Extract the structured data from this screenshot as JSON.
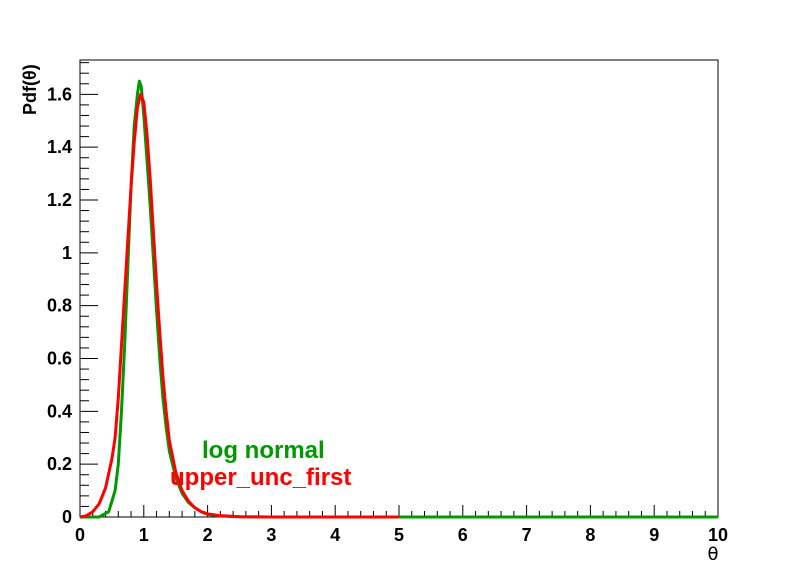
{
  "chart_data": {
    "type": "line",
    "title": "",
    "xlabel": "θ",
    "ylabel": "Pdf(θ)",
    "xlim": [
      0,
      10
    ],
    "ylim": [
      0,
      1.73
    ],
    "grid": false,
    "x_ticks": [
      "0",
      "1",
      "2",
      "3",
      "4",
      "5",
      "6",
      "7",
      "8",
      "9",
      "10"
    ],
    "y_ticks": [
      "0",
      "0.2",
      "0.4",
      "0.6",
      "0.8",
      "1",
      "1.2",
      "1.4",
      "1.6"
    ],
    "series": [
      {
        "name": "log normal",
        "color": "#009900",
        "x": [
          0.0,
          0.3,
          0.45,
          0.55,
          0.6,
          0.65,
          0.7,
          0.75,
          0.8,
          0.85,
          0.9,
          0.93,
          0.96,
          1.0,
          1.05,
          1.1,
          1.15,
          1.2,
          1.25,
          1.3,
          1.35,
          1.4,
          1.5,
          1.6,
          1.7,
          1.8,
          1.9,
          2.0,
          2.2,
          2.5,
          3.0,
          4.0,
          5.0,
          6.0,
          8.0,
          10.0
        ],
        "y": [
          0.0,
          0.0,
          0.02,
          0.1,
          0.2,
          0.4,
          0.65,
          0.95,
          1.25,
          1.48,
          1.6,
          1.65,
          1.63,
          1.52,
          1.35,
          1.18,
          0.98,
          0.78,
          0.6,
          0.45,
          0.34,
          0.25,
          0.15,
          0.09,
          0.055,
          0.035,
          0.02,
          0.01,
          0.004,
          0.001,
          0.0,
          0.0,
          0.0,
          0.0,
          0.0,
          0.0
        ]
      },
      {
        "name": "upper_unc_first",
        "color": "#ff0000",
        "x": [
          0.0,
          0.1,
          0.2,
          0.3,
          0.4,
          0.5,
          0.55,
          0.6,
          0.65,
          0.7,
          0.75,
          0.8,
          0.85,
          0.9,
          0.95,
          1.0,
          1.05,
          1.1,
          1.15,
          1.2,
          1.25,
          1.3,
          1.35,
          1.4,
          1.5,
          1.6,
          1.7,
          1.8,
          1.9,
          2.0,
          2.2,
          2.5,
          3.0,
          4.0,
          5.0
        ],
        "y": [
          0.0,
          0.005,
          0.02,
          0.05,
          0.11,
          0.22,
          0.3,
          0.45,
          0.65,
          0.85,
          1.05,
          1.25,
          1.42,
          1.55,
          1.6,
          1.57,
          1.45,
          1.28,
          1.08,
          0.88,
          0.7,
          0.53,
          0.4,
          0.29,
          0.17,
          0.1,
          0.06,
          0.035,
          0.02,
          0.012,
          0.005,
          0.001,
          0.0,
          0.0,
          0.0
        ]
      }
    ],
    "legend": [
      {
        "label": "log normal",
        "color": "#009900"
      },
      {
        "label": "upper_unc_first",
        "color": "#ff0000"
      }
    ]
  }
}
